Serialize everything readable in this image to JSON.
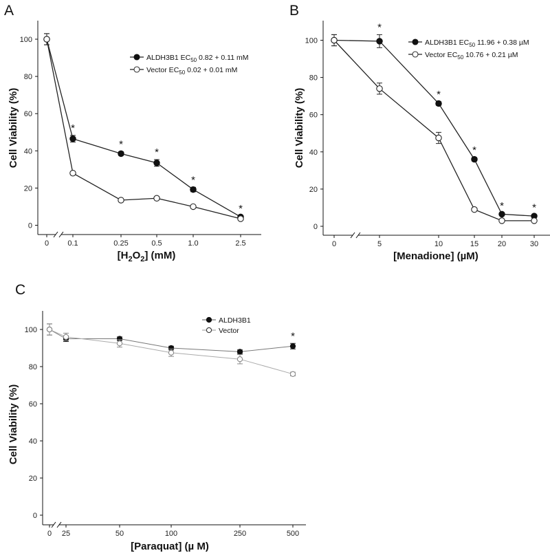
{
  "chart_data": [
    {
      "panel": "A",
      "type": "line",
      "xlabel": "[H2O2] (mM)",
      "ylabel": "Cell Viability (%)",
      "categories": [
        "0",
        "0.1",
        "0.25",
        "0.5",
        "1.0",
        "2.5"
      ],
      "ylim": [
        0,
        110
      ],
      "yticks": [
        0,
        20,
        40,
        60,
        80,
        100
      ],
      "axis_break": "x between 0 and 0.1",
      "series": [
        {
          "name": "ALDH3B1",
          "legend_prefix": "ALDH3B1 EC",
          "legend_sub": "50",
          "legend_suffix": " 0.82 + 0.11 mM",
          "marker": "filled",
          "values": [
            100,
            46.5,
            38.5,
            33.5,
            19.2,
            4.5
          ],
          "errors": [
            3,
            1.8,
            1,
            1.8,
            1.2,
            0.5
          ]
        },
        {
          "name": "Vector",
          "legend_prefix": "Vector EC",
          "legend_sub": "50",
          "legend_suffix": " 0.02 + 0.01 mM",
          "marker": "open",
          "values": [
            100,
            28,
            13.5,
            14.5,
            10,
            3.5
          ],
          "errors": [
            3,
            0.8,
            0.5,
            0.5,
            0.5,
            0.4
          ]
        }
      ],
      "significance": [
        false,
        true,
        true,
        true,
        true,
        true
      ],
      "legend_position": "top-right"
    },
    {
      "panel": "B",
      "type": "line",
      "xlabel": "[Menadione] (µM)",
      "ylabel": "Cell Viability (%)",
      "categories": [
        "0",
        "5",
        "10",
        "15",
        "20",
        "30"
      ],
      "ylim": [
        0,
        110
      ],
      "yticks": [
        0,
        20,
        40,
        60,
        80,
        100
      ],
      "axis_break": "x between 0 and 5",
      "series": [
        {
          "name": "ALDH3B1",
          "legend_prefix": "ALDH3B1 EC",
          "legend_sub": "50",
          "legend_suffix": " 11.96 + 0.38 µM",
          "marker": "filled",
          "values": [
            100,
            99.5,
            66,
            36,
            6.5,
            5.5
          ],
          "errors": [
            3,
            3.5,
            1,
            1,
            0.6,
            0.6
          ]
        },
        {
          "name": "Vector",
          "legend_prefix": "Vector EC",
          "legend_sub": "50",
          "legend_suffix": " 10.76 + 0.21 µM",
          "marker": "open",
          "values": [
            100,
            74,
            47.5,
            9,
            3,
            3
          ],
          "errors": [
            3,
            3,
            3,
            0.5,
            0.4,
            0.4
          ]
        }
      ],
      "significance": [
        false,
        true,
        true,
        true,
        true,
        true
      ],
      "legend_position": "top-right"
    },
    {
      "panel": "C",
      "type": "line",
      "xlabel": "[Paraquat] (µ M)",
      "ylabel": "Cell Viability (%)",
      "categories": [
        "0",
        "25",
        "50",
        "100",
        "250",
        "500"
      ],
      "ylim": [
        0,
        110
      ],
      "yticks": [
        0,
        20,
        40,
        60,
        80,
        100
      ],
      "axis_break": "x between 0 and 25",
      "series": [
        {
          "name": "ALDH3B1",
          "legend_prefix": "ALDH3B1",
          "legend_sub": "",
          "legend_suffix": "",
          "marker": "filled",
          "values": [
            100,
            95,
            95,
            90,
            88,
            91
          ],
          "errors": [
            3,
            1.5,
            1,
            1,
            1,
            1.5
          ]
        },
        {
          "name": "Vector",
          "legend_prefix": "Vector",
          "legend_sub": "",
          "legend_suffix": "",
          "marker": "open",
          "values": [
            100,
            96,
            92.5,
            87.5,
            84,
            76
          ],
          "errors": [
            3,
            2,
            2,
            2,
            2.5,
            1
          ]
        }
      ],
      "significance": [
        false,
        false,
        false,
        false,
        false,
        true
      ],
      "legend_position": "top-center"
    }
  ],
  "significance_mark": "*"
}
